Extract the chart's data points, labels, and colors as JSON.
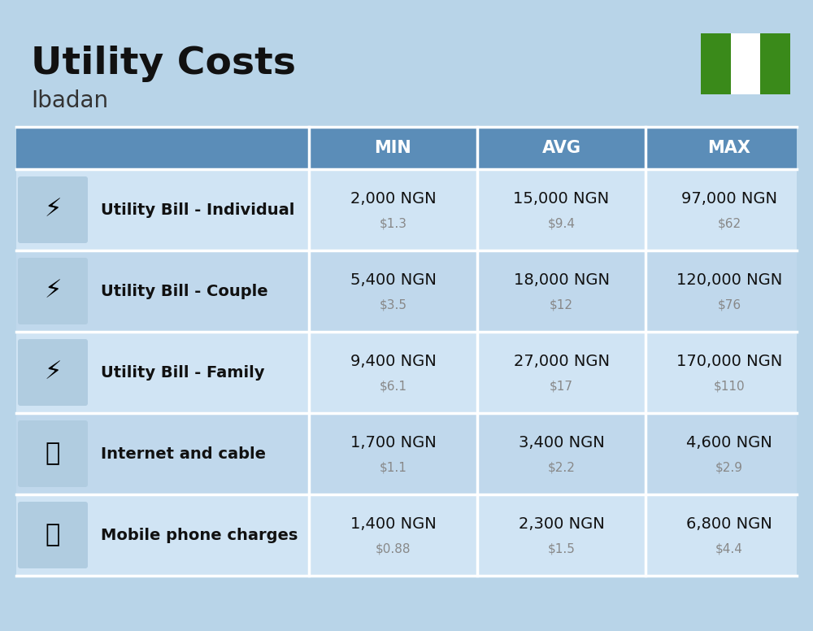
{
  "title": "Utility Costs",
  "subtitle": "Ibadan",
  "background_color": "#b8d4e8",
  "header_bg_color": "#5b8db8",
  "header_text_color": "#ffffff",
  "row_colors": [
    "#d0e4f4",
    "#c0d8ec"
  ],
  "separator_color": "#ffffff",
  "rows": [
    {
      "label": "Utility Bill - Individual",
      "min_ngn": "2,000 NGN",
      "min_usd": "$1.3",
      "avg_ngn": "15,000 NGN",
      "avg_usd": "$9.4",
      "max_ngn": "97,000 NGN",
      "max_usd": "$62"
    },
    {
      "label": "Utility Bill - Couple",
      "min_ngn": "5,400 NGN",
      "min_usd": "$3.5",
      "avg_ngn": "18,000 NGN",
      "avg_usd": "$12",
      "max_ngn": "120,000 NGN",
      "max_usd": "$76"
    },
    {
      "label": "Utility Bill - Family",
      "min_ngn": "9,400 NGN",
      "min_usd": "$6.1",
      "avg_ngn": "27,000 NGN",
      "avg_usd": "$17",
      "max_ngn": "170,000 NGN",
      "max_usd": "$110"
    },
    {
      "label": "Internet and cable",
      "min_ngn": "1,700 NGN",
      "min_usd": "$1.1",
      "avg_ngn": "3,400 NGN",
      "avg_usd": "$2.2",
      "max_ngn": "4,600 NGN",
      "max_usd": "$2.9"
    },
    {
      "label": "Mobile phone charges",
      "min_ngn": "1,400 NGN",
      "min_usd": "$0.88",
      "avg_ngn": "2,300 NGN",
      "avg_usd": "$1.5",
      "max_ngn": "6,800 NGN",
      "max_usd": "$4.4"
    }
  ],
  "title_fontsize": 34,
  "subtitle_fontsize": 20,
  "header_fontsize": 15,
  "label_fontsize": 14,
  "value_fontsize": 14,
  "usd_fontsize": 11,
  "flag_green": "#3a8a1a",
  "flag_white": "#ffffff",
  "ngn_color": "#111111",
  "usd_color": "#888888"
}
